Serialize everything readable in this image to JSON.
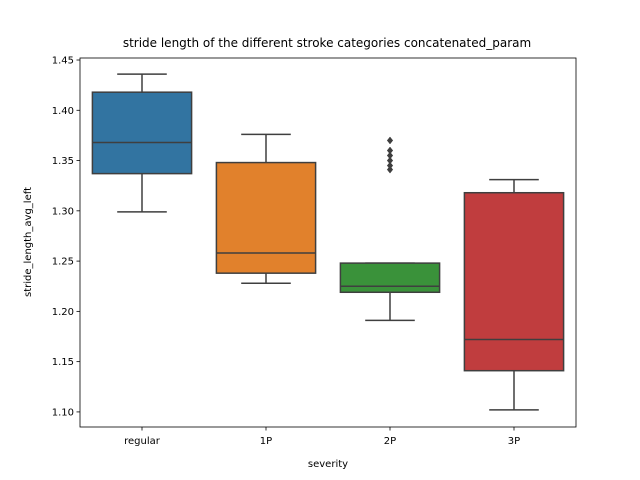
{
  "chart_data": {
    "type": "boxplot",
    "title": "stride length of the different stroke categories concatenated_param",
    "xlabel": "severity",
    "ylabel": "stride_length_avg_left",
    "ylim": [
      1.085,
      1.452
    ],
    "yticks": [
      "1.10",
      "1.15",
      "1.20",
      "1.25",
      "1.30",
      "1.35",
      "1.40",
      "1.45"
    ],
    "categories": [
      "regular",
      "1P",
      "2P",
      "3P"
    ],
    "colors": [
      "#3274a1",
      "#e1812c",
      "#3a923a",
      "#c03d3e"
    ],
    "edge_color": "#3f3f3f",
    "boxes": [
      {
        "category": "regular",
        "whisker_low": 1.299,
        "q1": 1.337,
        "median": 1.368,
        "q3": 1.418,
        "whisker_high": 1.436,
        "outliers": []
      },
      {
        "category": "1P",
        "whisker_low": 1.228,
        "q1": 1.238,
        "median": 1.258,
        "q3": 1.348,
        "whisker_high": 1.376,
        "outliers": []
      },
      {
        "category": "2P",
        "whisker_low": 1.191,
        "q1": 1.219,
        "median": 1.225,
        "q3": 1.248,
        "whisker_high": 1.248,
        "outliers": [
          1.341,
          1.345,
          1.35,
          1.355,
          1.36,
          1.37
        ]
      },
      {
        "category": "3P",
        "whisker_low": 1.102,
        "q1": 1.141,
        "median": 1.172,
        "q3": 1.318,
        "whisker_high": 1.331,
        "outliers": []
      }
    ]
  }
}
